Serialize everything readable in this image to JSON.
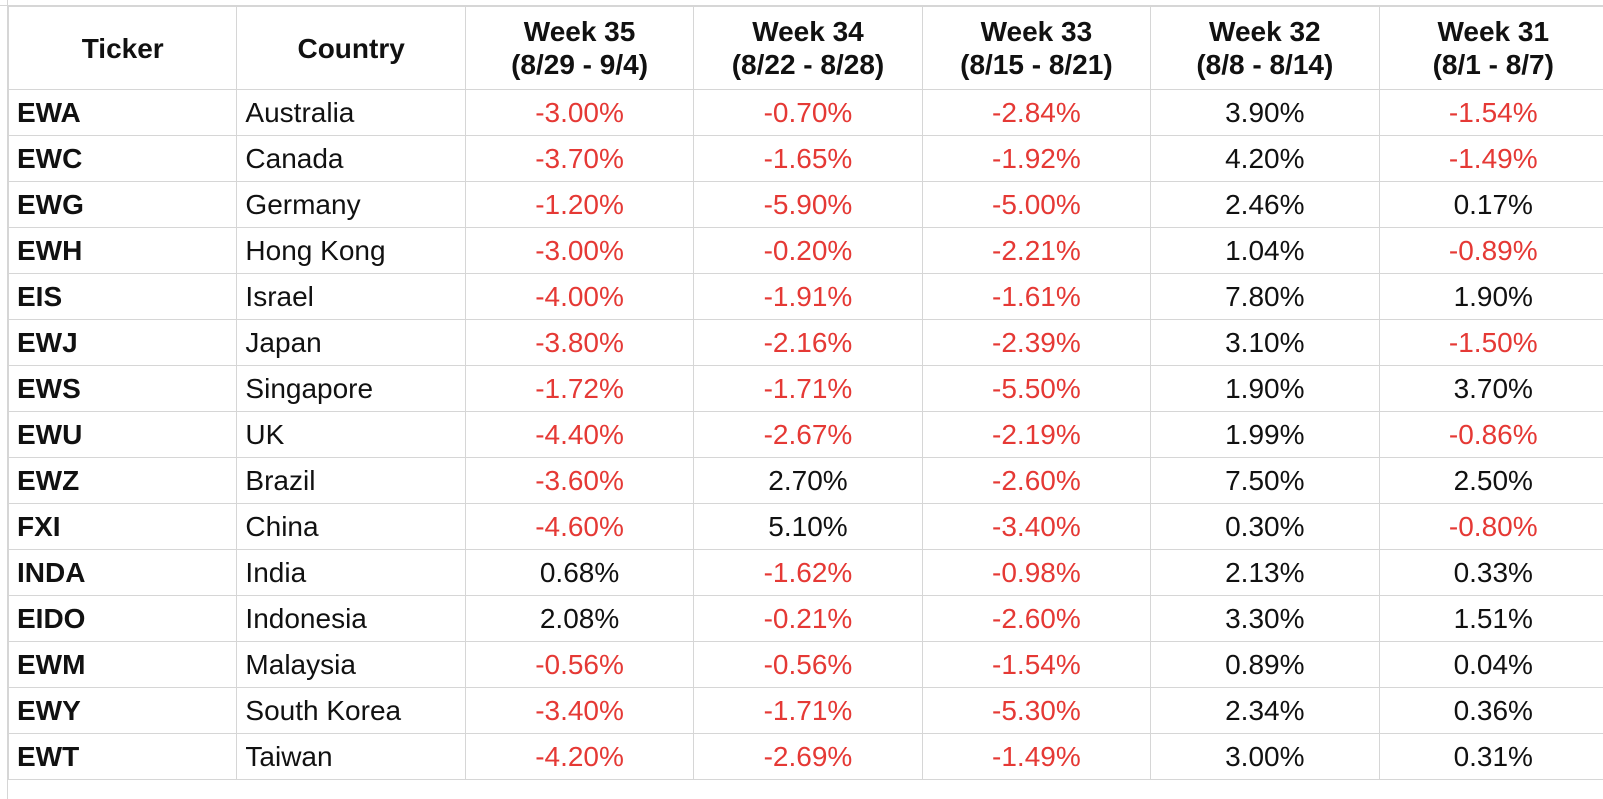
{
  "table": {
    "headers": {
      "ticker": "Ticker",
      "country": "Country",
      "weeks": [
        {
          "line1": "Week 35",
          "line2": "(8/29 - 9/4)"
        },
        {
          "line1": "Week 34",
          "line2": "(8/22 - 8/28)"
        },
        {
          "line1": "Week 33",
          "line2": "(8/15 - 8/21)"
        },
        {
          "line1": "Week 32",
          "line2": "(8/8 - 8/14)"
        },
        {
          "line1": "Week 31",
          "line2": "(8/1 - 8/7)"
        }
      ]
    },
    "rows": [
      {
        "ticker": "EWA",
        "country": "Australia",
        "values": [
          "-3.00%",
          "-0.70%",
          "-2.84%",
          "3.90%",
          "-1.54%"
        ]
      },
      {
        "ticker": "EWC",
        "country": "Canada",
        "values": [
          "-3.70%",
          "-1.65%",
          "-1.92%",
          "4.20%",
          "-1.49%"
        ]
      },
      {
        "ticker": "EWG",
        "country": "Germany",
        "values": [
          "-1.20%",
          "-5.90%",
          "-5.00%",
          "2.46%",
          "0.17%"
        ]
      },
      {
        "ticker": "EWH",
        "country": "Hong Kong",
        "values": [
          "-3.00%",
          "-0.20%",
          "-2.21%",
          "1.04%",
          "-0.89%"
        ]
      },
      {
        "ticker": "EIS",
        "country": "Israel",
        "values": [
          "-4.00%",
          "-1.91%",
          "-1.61%",
          "7.80%",
          "1.90%"
        ]
      },
      {
        "ticker": "EWJ",
        "country": "Japan",
        "values": [
          "-3.80%",
          "-2.16%",
          "-2.39%",
          "3.10%",
          "-1.50%"
        ]
      },
      {
        "ticker": "EWS",
        "country": "Singapore",
        "values": [
          "-1.72%",
          "-1.71%",
          "-5.50%",
          "1.90%",
          "3.70%"
        ]
      },
      {
        "ticker": "EWU",
        "country": "UK",
        "values": [
          "-4.40%",
          "-2.67%",
          "-2.19%",
          "1.99%",
          "-0.86%"
        ]
      },
      {
        "ticker": "EWZ",
        "country": "Brazil",
        "values": [
          "-3.60%",
          "2.70%",
          "-2.60%",
          "7.50%",
          "2.50%"
        ]
      },
      {
        "ticker": "FXI",
        "country": "China",
        "values": [
          "-4.60%",
          "5.10%",
          "-3.40%",
          "0.30%",
          "-0.80%"
        ]
      },
      {
        "ticker": "INDA",
        "country": "India",
        "values": [
          "0.68%",
          "-1.62%",
          "-0.98%",
          "2.13%",
          "0.33%"
        ]
      },
      {
        "ticker": "EIDO",
        "country": "Indonesia",
        "values": [
          "2.08%",
          "-0.21%",
          "-2.60%",
          "3.30%",
          "1.51%"
        ]
      },
      {
        "ticker": "EWM",
        "country": "Malaysia",
        "values": [
          "-0.56%",
          "-0.56%",
          "-1.54%",
          "0.89%",
          "0.04%"
        ]
      },
      {
        "ticker": "EWY",
        "country": "South Korea",
        "values": [
          "-3.40%",
          "-1.71%",
          "-5.30%",
          "2.34%",
          "0.36%"
        ]
      },
      {
        "ticker": "EWT",
        "country": "Taiwan",
        "values": [
          "-4.20%",
          "-2.69%",
          "-1.49%",
          "3.00%",
          "0.31%"
        ]
      }
    ]
  },
  "colors": {
    "negative": "#e53935",
    "positive": "#111111",
    "gridline": "#d6d6d6"
  }
}
